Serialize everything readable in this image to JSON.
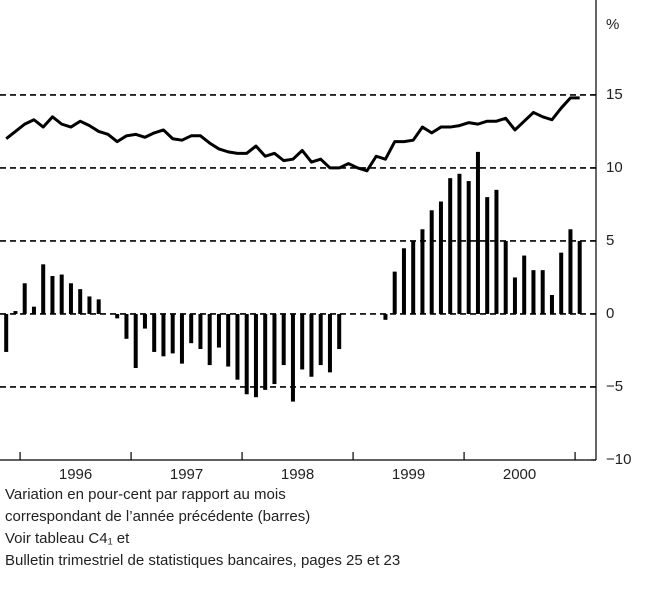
{
  "chart_data": {
    "type": "bar_line",
    "y_label": "%",
    "categories": [
      null,
      null,
      null,
      null,
      null,
      null,
      null,
      null,
      null,
      null,
      null,
      null,
      null,
      null,
      null,
      null,
      null,
      null,
      null,
      null,
      null,
      null,
      null,
      null,
      null,
      null,
      null,
      null,
      null,
      null,
      null,
      null,
      null,
      null,
      null,
      null,
      null,
      null,
      null,
      null,
      null,
      null,
      null,
      null,
      null,
      null,
      null,
      null,
      null,
      null,
      null,
      null,
      null,
      null,
      null,
      null,
      null,
      null,
      null,
      null,
      null,
      null,
      null
    ],
    "year_labels": [
      "1996",
      "1997",
      "1998",
      "1999",
      "2000"
    ],
    "series": [
      {
        "kind": "bar",
        "color": "#000000",
        "values": [
          -2.6,
          0.2,
          2.1,
          0.5,
          3.4,
          2.6,
          2.7,
          2.1,
          1.7,
          1.2,
          1.0,
          0,
          -0.3,
          -1.7,
          -3.7,
          -1.0,
          -2.6,
          -2.9,
          -2.7,
          -3.4,
          -2.0,
          -2.4,
          -3.5,
          -2.3,
          -3.6,
          -4.5,
          -5.5,
          -5.7,
          -5.2,
          -4.8,
          -3.5,
          -6.0,
          -3.8,
          -4.3,
          -3.5,
          -4.0,
          -2.4,
          0,
          0,
          0,
          0,
          -0.4,
          2.9,
          4.5,
          5.0,
          5.8,
          7.1,
          7.7,
          9.3,
          9.6,
          9.1,
          11.1,
          8.0,
          8.5,
          5.0,
          2.5,
          4.0,
          3.0,
          3.0,
          1.3,
          4.2,
          5.8,
          5.0
        ]
      },
      {
        "kind": "line",
        "color": "#000000",
        "values": [
          12.0,
          12.5,
          13.0,
          13.3,
          12.8,
          13.5,
          13.0,
          12.8,
          13.2,
          12.9,
          12.5,
          12.3,
          11.8,
          12.2,
          12.3,
          12.1,
          12.4,
          12.6,
          12.0,
          11.9,
          12.2,
          12.2,
          11.7,
          11.3,
          11.1,
          11.0,
          11.0,
          11.5,
          10.8,
          11.0,
          10.5,
          10.6,
          11.2,
          10.4,
          10.6,
          10.0,
          10.0,
          10.3,
          10.0,
          9.8,
          10.8,
          10.6,
          11.8,
          11.8,
          11.9,
          12.8,
          12.4,
          12.8,
          12.8,
          12.9,
          13.1,
          13.0,
          13.2,
          13.2,
          13.4,
          12.6,
          13.2,
          13.8,
          13.5,
          13.3,
          14.1,
          14.8,
          14.8
        ]
      }
    ],
    "ylim": [
      -10,
      21.5
    ],
    "yticks": [
      {
        "value": -10,
        "label": "−10"
      },
      {
        "value": -5,
        "label": "−5"
      },
      0,
      5,
      10,
      15
    ],
    "grid": true,
    "notes": [
      "Variation en pour-cent par rapport au mois",
      "correspondant de l’année précédente (barres)",
      "Voir tableau C4₁ et",
      "Bulletin trimestriel de statistiques bancaires, pages 25 et 23"
    ]
  }
}
